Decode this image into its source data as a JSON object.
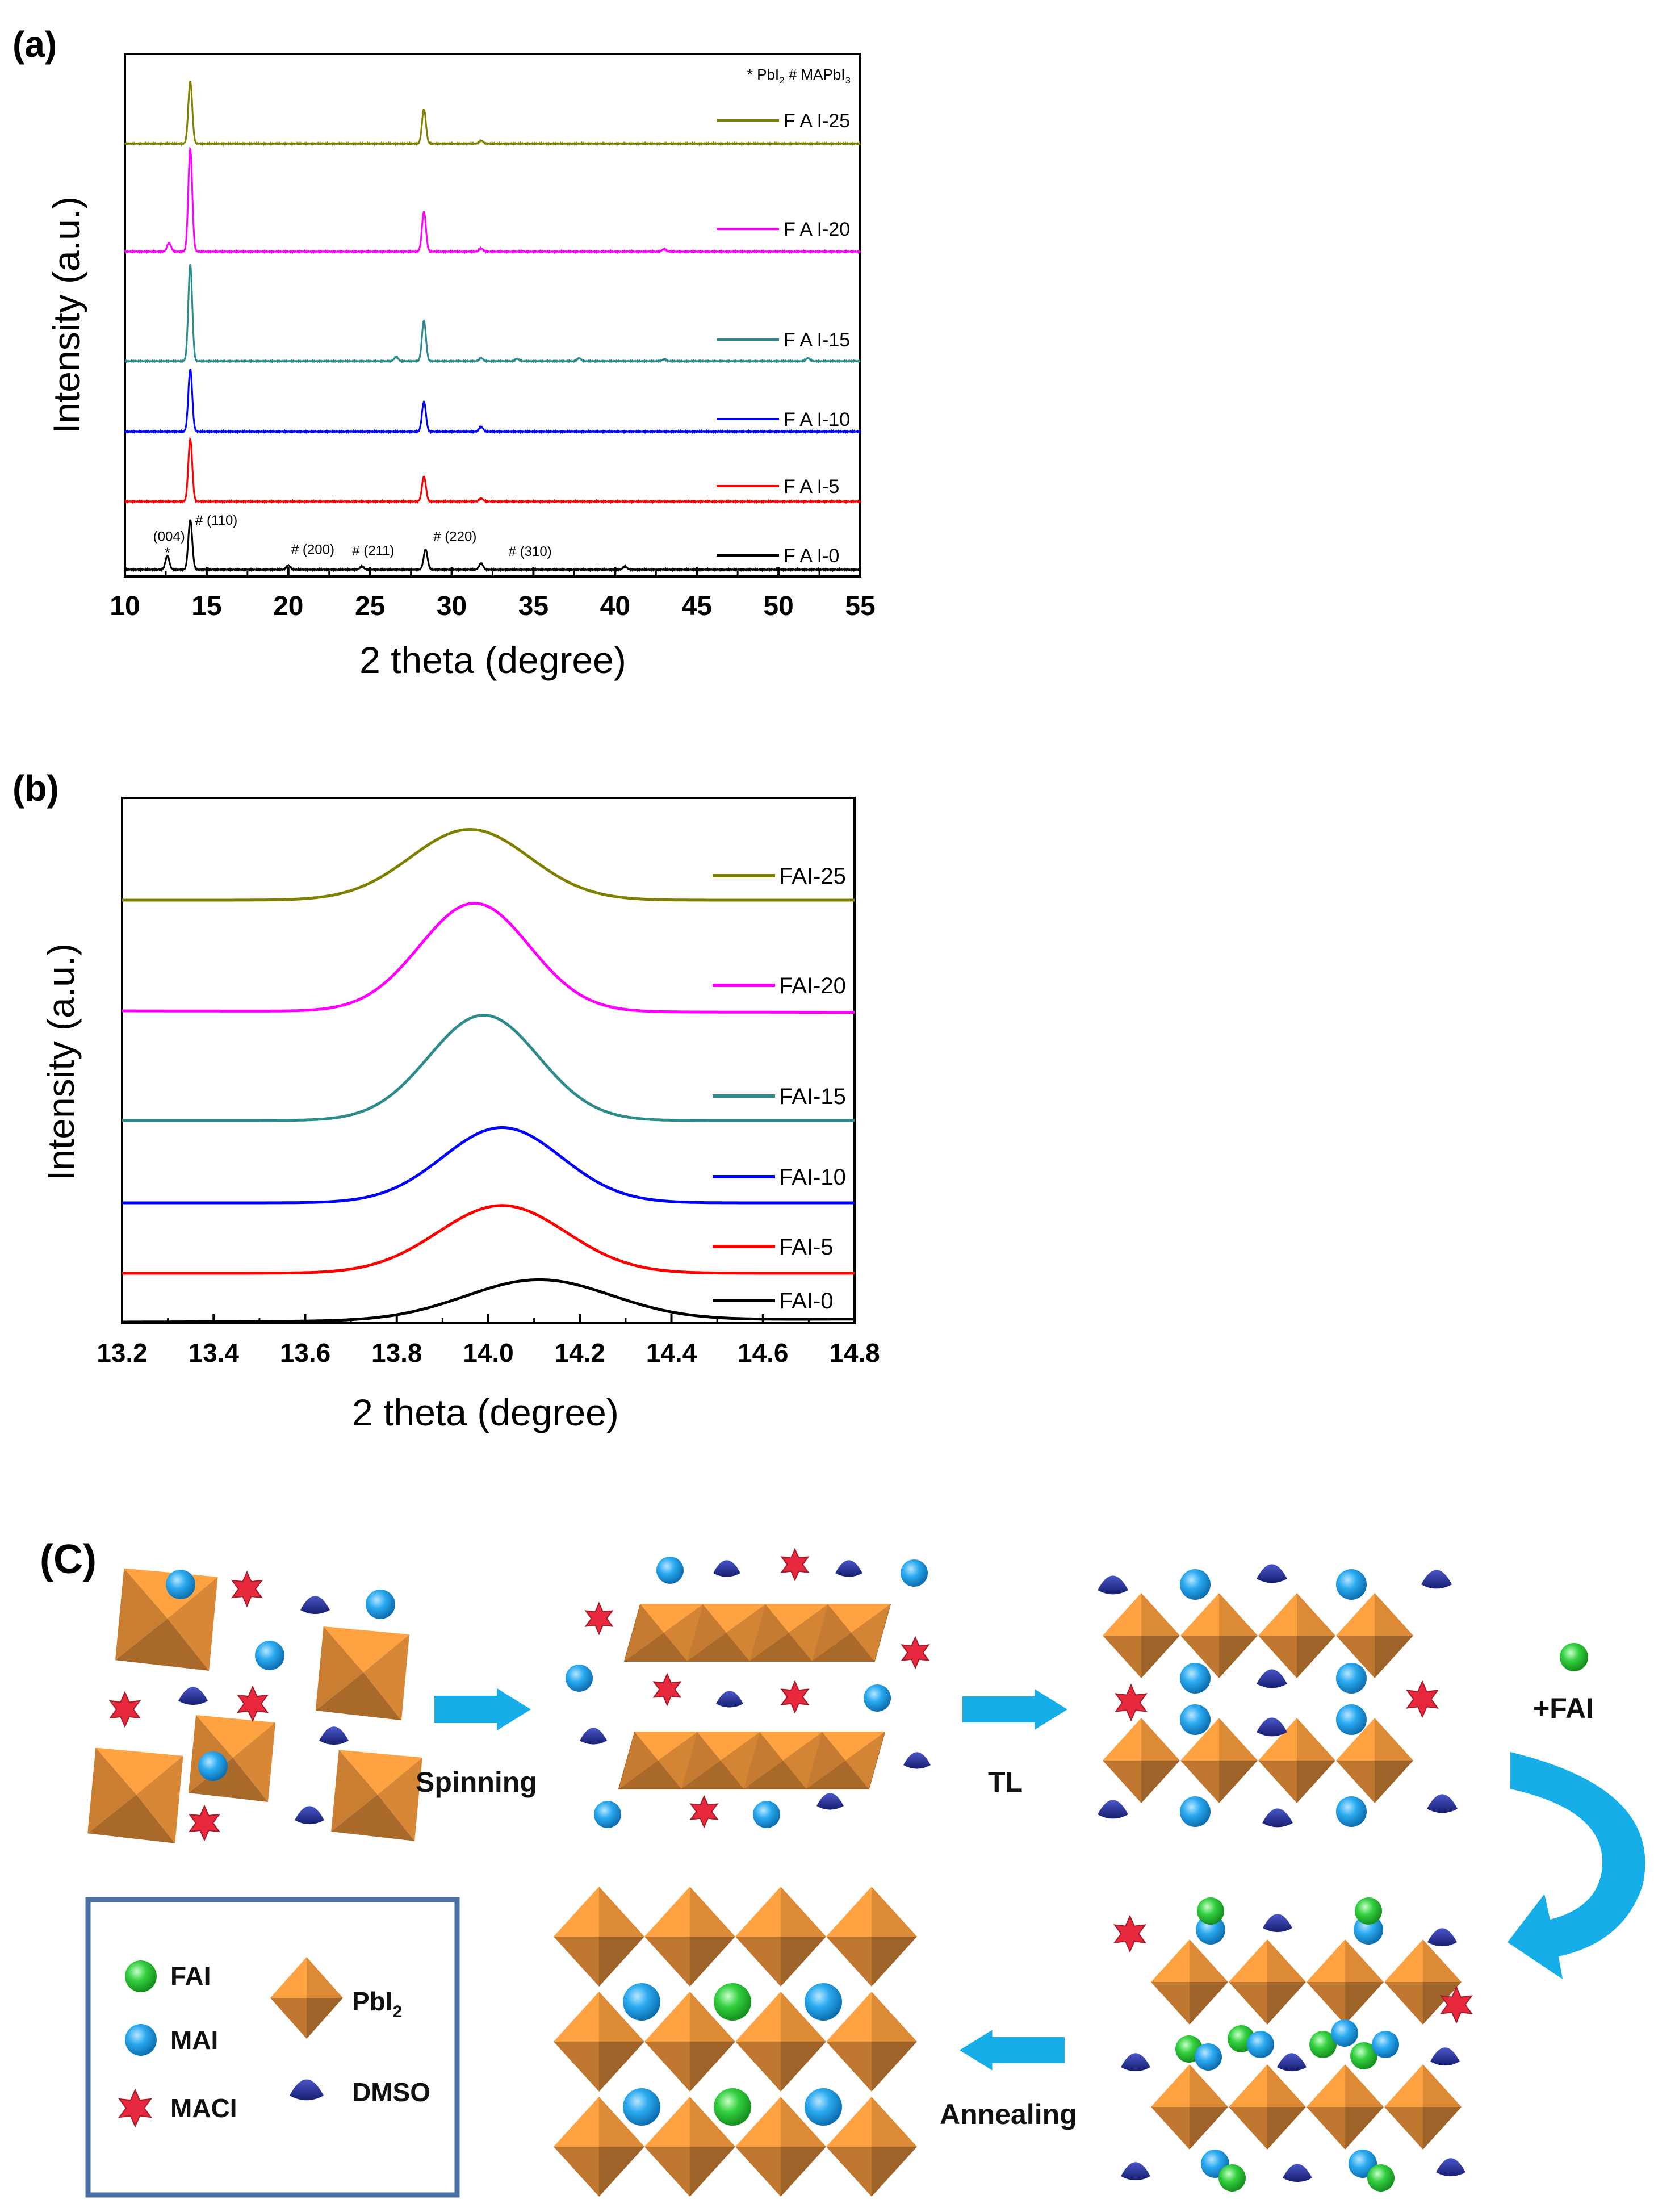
{
  "chart_data": [
    {
      "id": "a",
      "panel_label": "(a)",
      "type": "line",
      "xlabel": "2 theta (degree)",
      "ylabel": "Intensity (a.u.)",
      "xlim": [
        10,
        55
      ],
      "xticks": [
        10,
        15,
        20,
        25,
        30,
        35,
        40,
        45,
        50,
        55
      ],
      "grid": false,
      "legend_title_parts": [
        "* PbI",
        "2",
        " # MAPbI",
        "3"
      ],
      "annotations": [
        {
          "text": "(004)",
          "x": 12.7,
          "series": "FAI-0",
          "level": 0.46
        },
        {
          "text": "*",
          "x": 12.6,
          "series": "FAI-0",
          "level": 0.2
        },
        {
          "text": "# (110)",
          "x": 15.6,
          "series": "FAI-0",
          "level": 0.72
        },
        {
          "text": "# (200)",
          "x": 21.5,
          "series": "FAI-0",
          "level": 0.25
        },
        {
          "text": "# (211)",
          "x": 25.2,
          "series": "FAI-0",
          "level": 0.23
        },
        {
          "text": "# (220)",
          "x": 30.2,
          "series": "FAI-0",
          "level": 0.46
        },
        {
          "text": "# (310)",
          "x": 34.8,
          "series": "FAI-0",
          "level": 0.22
        }
      ],
      "series": [
        {
          "name": "FAI-0",
          "label": "F A I-0",
          "color": "#000000",
          "peaks": [
            [
              12.6,
              0.22
            ],
            [
              14.0,
              0.8
            ],
            [
              20.0,
              0.07
            ],
            [
              24.5,
              0.05
            ],
            [
              28.4,
              0.32
            ],
            [
              31.8,
              0.1
            ],
            [
              40.6,
              0.05
            ]
          ]
        },
        {
          "name": "FAI-5",
          "label": "F A I-5",
          "color": "#ff0000",
          "peaks": [
            [
              14.0,
              1.0
            ],
            [
              28.3,
              0.4
            ],
            [
              31.8,
              0.05
            ]
          ]
        },
        {
          "name": "FAI-10",
          "label": "F A I-10",
          "color": "#0000ff",
          "peaks": [
            [
              14.0,
              1.0
            ],
            [
              28.3,
              0.48
            ],
            [
              31.8,
              0.08
            ]
          ]
        },
        {
          "name": "FAI-15",
          "label": "F A I-15",
          "color": "#2e8b8b",
          "peaks": [
            [
              14.0,
              1.55
            ],
            [
              26.6,
              0.07
            ],
            [
              28.3,
              0.65
            ],
            [
              31.8,
              0.05
            ],
            [
              34.0,
              0.04
            ],
            [
              37.8,
              0.05
            ],
            [
              43.0,
              0.03
            ],
            [
              51.8,
              0.05
            ]
          ]
        },
        {
          "name": "FAI-20",
          "label": "F A I-20",
          "color": "#ff00ff",
          "peaks": [
            [
              12.7,
              0.14
            ],
            [
              14.0,
              1.65
            ],
            [
              28.3,
              0.64
            ],
            [
              31.8,
              0.05
            ],
            [
              43.0,
              0.04
            ]
          ]
        },
        {
          "name": "FAI-25",
          "label": "F A I-25",
          "color": "#808000",
          "peaks": [
            [
              14.0,
              1.0
            ],
            [
              28.3,
              0.55
            ],
            [
              31.8,
              0.05
            ]
          ]
        }
      ]
    },
    {
      "id": "b",
      "panel_label": "(b)",
      "type": "line",
      "xlabel": "2 theta (degree)",
      "ylabel": "Intensity (a.u.)",
      "xlim": [
        13.2,
        14.8
      ],
      "xticks": [
        "13.2",
        "13.4",
        "13.6",
        "13.8",
        "14.0",
        "14.2",
        "14.4",
        "14.6",
        "14.8"
      ],
      "grid": false,
      "series": [
        {
          "name": "FAI-0",
          "label": "FAI-0",
          "color": "#000000",
          "center": 14.11,
          "width": 0.16,
          "height": 0.27,
          "baseline_left": 0.0,
          "baseline_right": 0.02
        },
        {
          "name": "FAI-5",
          "label": "FAI-5",
          "color": "#ff0000",
          "center": 14.03,
          "width": 0.14,
          "height": 0.45,
          "baseline_left": 0.0,
          "baseline_right": 0.0
        },
        {
          "name": "FAI-10",
          "label": "FAI-10",
          "color": "#0000ff",
          "center": 14.03,
          "width": 0.13,
          "height": 0.5,
          "baseline_left": 0.0,
          "baseline_right": 0.0
        },
        {
          "name": "FAI-15",
          "label": "FAI-15",
          "color": "#2e8b8b",
          "center": 13.99,
          "width": 0.12,
          "height": 0.7,
          "baseline_left": 0.0,
          "baseline_right": 0.0
        },
        {
          "name": "FAI-20",
          "label": "FAI-20",
          "color": "#ff00ff",
          "center": 13.97,
          "width": 0.12,
          "height": 0.72,
          "baseline_left": 0.0,
          "baseline_right": -0.01
        },
        {
          "name": "FAI-25",
          "label": "FAI-25",
          "color": "#808000",
          "center": 13.96,
          "width": 0.13,
          "height": 0.47,
          "baseline_left": 0.0,
          "baseline_right": 0.0
        }
      ]
    }
  ],
  "schematic": {
    "panel_label": "(C)",
    "steps": [
      "Spinning",
      "TL",
      "+FAI",
      "Annealing"
    ],
    "legend": [
      {
        "key": "FAI",
        "label": "FAI",
        "color": "#2ec83a"
      },
      {
        "key": "MAI",
        "label": "MAI",
        "color": "#1fa0e6"
      },
      {
        "key": "MACI",
        "label": "MACI",
        "color": "#e8283c"
      },
      {
        "key": "PbI2",
        "label": "PbI",
        "sub": "2",
        "color": "#f0963c"
      },
      {
        "key": "DMSO",
        "label": "DMSO",
        "color": "#232d96"
      }
    ],
    "legend_border_color": "#4a6fa0",
    "arrow_color": "#15aee8"
  }
}
